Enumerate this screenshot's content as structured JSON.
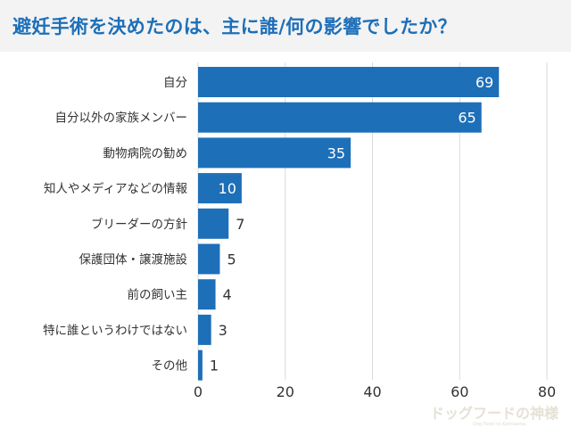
{
  "title": "避妊手術を決めたのは、主に誰/何の影響でしたか？",
  "logo": {
    "text": "ドッグフードの神様",
    "sub": "Dog Food no Kamisama"
  },
  "colors": {
    "bar": "#1d6fb8",
    "title": "#1d6fb8",
    "grid": "#d9d9d9",
    "label": "#333333"
  },
  "chart_data": {
    "type": "bar",
    "orientation": "horizontal",
    "title": "避妊手術を決めたのは、主に誰/何の影響でしたか？",
    "categories": [
      "自分",
      "自分以外の家族メンバー",
      "動物病院の勧め",
      "知人やメディアなどの情報",
      "ブリーダーの方針",
      "保護団体・譲渡施設",
      "前の飼い主",
      "特に誰というわけではない",
      "その他"
    ],
    "values": [
      69,
      65,
      35,
      10,
      7,
      5,
      4,
      3,
      1
    ],
    "xlim": [
      0,
      80
    ],
    "xticks": [
      0,
      20,
      40,
      60,
      80
    ],
    "xlabel": "",
    "ylabel": "",
    "grid": true,
    "legend": "none"
  }
}
